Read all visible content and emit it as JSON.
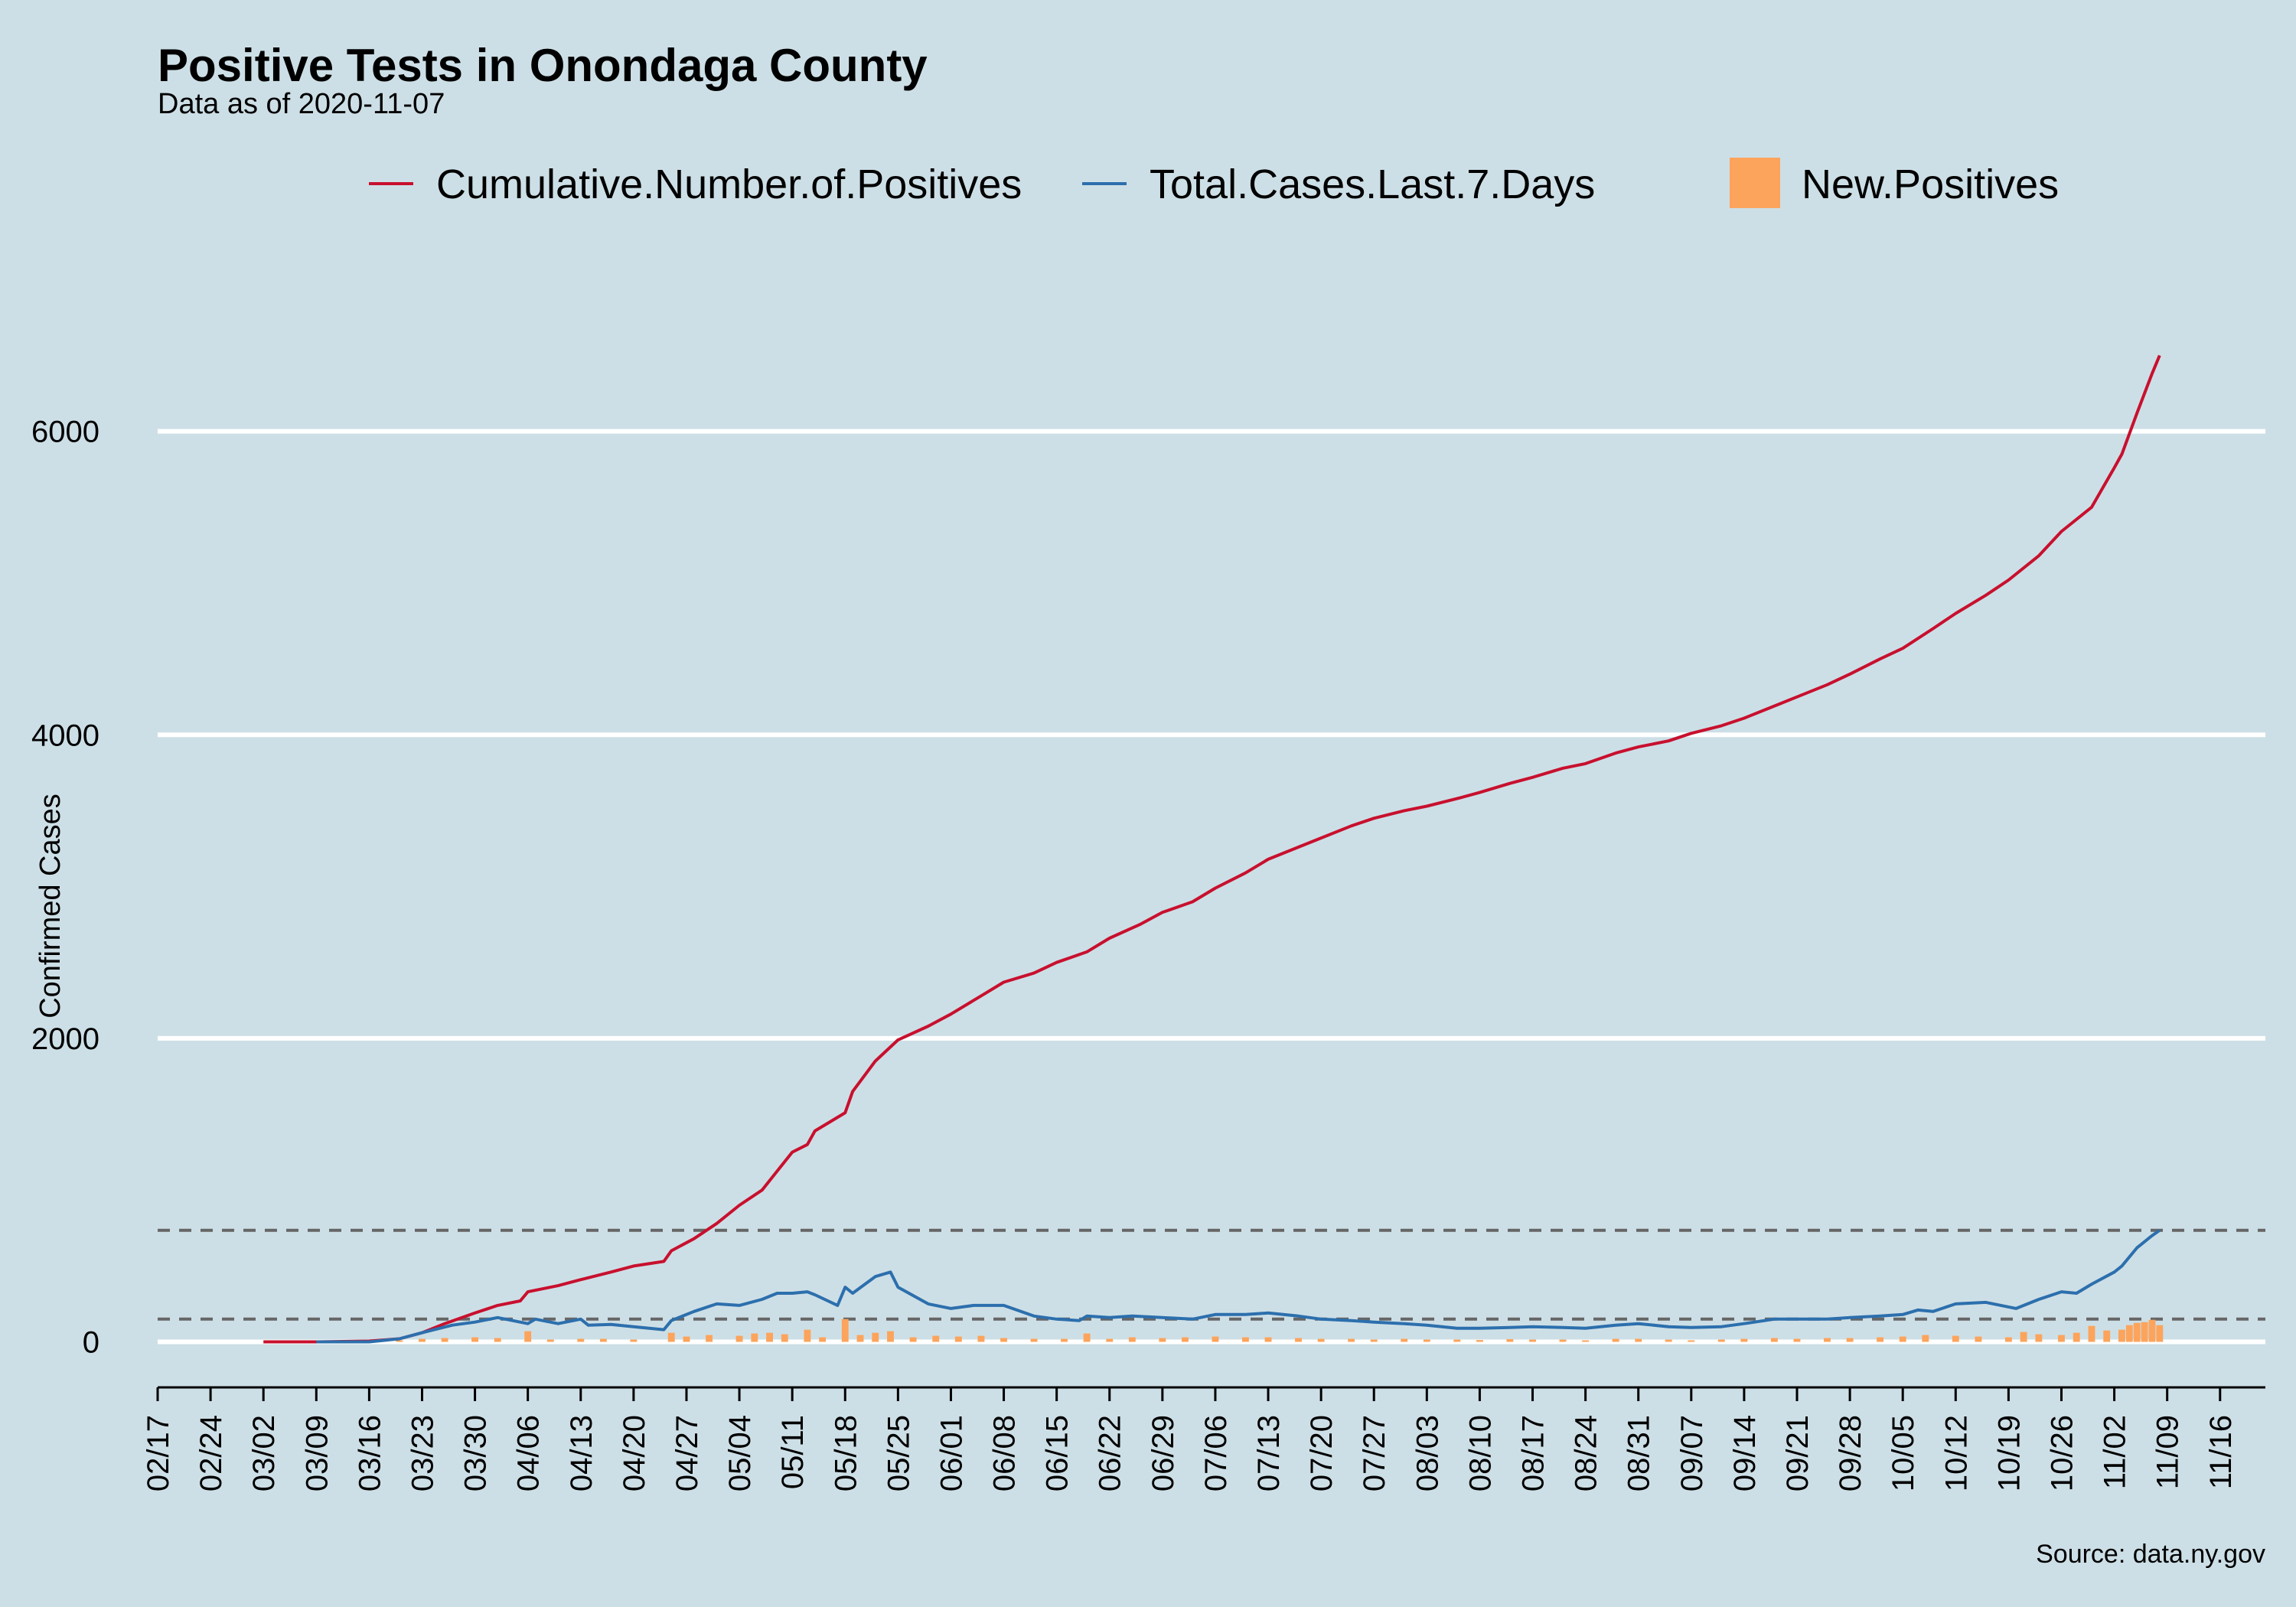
{
  "chart_data": {
    "type": "line",
    "title": "Positive Tests in Onondaga County",
    "subtitle": "Data as of 2020-11-07",
    "ylabel": "Confirmed Cases",
    "xlabel": "",
    "caption": "Source: data.ny.gov",
    "xlim": [
      "2020-02-17",
      "2020-11-22"
    ],
    "ylim": [
      -300,
      6800
    ],
    "y_ticks": [
      0,
      2000,
      4000,
      6000
    ],
    "x_tick_labels": [
      "02/17",
      "02/24",
      "03/02",
      "03/09",
      "03/16",
      "03/23",
      "03/30",
      "04/06",
      "04/13",
      "04/20",
      "04/27",
      "05/04",
      "05/11",
      "05/18",
      "05/25",
      "06/01",
      "06/08",
      "06/15",
      "06/22",
      "06/29",
      "07/06",
      "07/13",
      "07/20",
      "07/27",
      "08/03",
      "08/10",
      "08/17",
      "08/24",
      "08/31",
      "09/07",
      "09/14",
      "09/21",
      "09/28",
      "10/05",
      "10/12",
      "10/19",
      "10/26",
      "11/02",
      "11/09",
      "11/16"
    ],
    "x_tick_dates": [
      "2020-02-17",
      "2020-02-24",
      "2020-03-02",
      "2020-03-09",
      "2020-03-16",
      "2020-03-23",
      "2020-03-30",
      "2020-04-06",
      "2020-04-13",
      "2020-04-20",
      "2020-04-27",
      "2020-05-04",
      "2020-05-11",
      "2020-05-18",
      "2020-05-25",
      "2020-06-01",
      "2020-06-08",
      "2020-06-15",
      "2020-06-22",
      "2020-06-29",
      "2020-07-06",
      "2020-07-13",
      "2020-07-20",
      "2020-07-27",
      "2020-08-03",
      "2020-08-10",
      "2020-08-17",
      "2020-08-24",
      "2020-08-31",
      "2020-09-07",
      "2020-09-14",
      "2020-09-21",
      "2020-09-28",
      "2020-10-05",
      "2020-10-12",
      "2020-10-19",
      "2020-10-26",
      "2020-11-02",
      "2020-11-09",
      "2020-11-16"
    ],
    "reference_lines": [
      150,
      735
    ],
    "legend_position": "top",
    "series": [
      {
        "name": "Cumulative.Number.of.Positives",
        "kind": "line",
        "color": "#c8102e",
        "points": [
          [
            "2020-03-02",
            0
          ],
          [
            "2020-03-09",
            0
          ],
          [
            "2020-03-16",
            5
          ],
          [
            "2020-03-20",
            20
          ],
          [
            "2020-03-23",
            60
          ],
          [
            "2020-03-26",
            120
          ],
          [
            "2020-03-30",
            190
          ],
          [
            "2020-04-02",
            240
          ],
          [
            "2020-04-05",
            270
          ],
          [
            "2020-04-06",
            330
          ],
          [
            "2020-04-10",
            370
          ],
          [
            "2020-04-13",
            410
          ],
          [
            "2020-04-17",
            460
          ],
          [
            "2020-04-20",
            500
          ],
          [
            "2020-04-24",
            530
          ],
          [
            "2020-04-25",
            600
          ],
          [
            "2020-04-28",
            680
          ],
          [
            "2020-05-01",
            780
          ],
          [
            "2020-05-04",
            900
          ],
          [
            "2020-05-07",
            1000
          ],
          [
            "2020-05-11",
            1250
          ],
          [
            "2020-05-13",
            1300
          ],
          [
            "2020-05-14",
            1390
          ],
          [
            "2020-05-18",
            1510
          ],
          [
            "2020-05-19",
            1650
          ],
          [
            "2020-05-22",
            1850
          ],
          [
            "2020-05-25",
            1990
          ],
          [
            "2020-05-29",
            2080
          ],
          [
            "2020-06-01",
            2160
          ],
          [
            "2020-06-05",
            2280
          ],
          [
            "2020-06-08",
            2370
          ],
          [
            "2020-06-12",
            2430
          ],
          [
            "2020-06-15",
            2500
          ],
          [
            "2020-06-19",
            2570
          ],
          [
            "2020-06-22",
            2660
          ],
          [
            "2020-06-26",
            2750
          ],
          [
            "2020-06-29",
            2830
          ],
          [
            "2020-07-03",
            2900
          ],
          [
            "2020-07-06",
            2990
          ],
          [
            "2020-07-10",
            3090
          ],
          [
            "2020-07-13",
            3180
          ],
          [
            "2020-07-17",
            3260
          ],
          [
            "2020-07-20",
            3320
          ],
          [
            "2020-07-24",
            3400
          ],
          [
            "2020-07-27",
            3450
          ],
          [
            "2020-07-31",
            3500
          ],
          [
            "2020-08-03",
            3530
          ],
          [
            "2020-08-07",
            3580
          ],
          [
            "2020-08-10",
            3620
          ],
          [
            "2020-08-14",
            3680
          ],
          [
            "2020-08-17",
            3720
          ],
          [
            "2020-08-21",
            3780
          ],
          [
            "2020-08-24",
            3810
          ],
          [
            "2020-08-28",
            3880
          ],
          [
            "2020-08-31",
            3920
          ],
          [
            "2020-09-04",
            3960
          ],
          [
            "2020-09-07",
            4010
          ],
          [
            "2020-09-11",
            4060
          ],
          [
            "2020-09-14",
            4110
          ],
          [
            "2020-09-18",
            4190
          ],
          [
            "2020-09-21",
            4250
          ],
          [
            "2020-09-25",
            4330
          ],
          [
            "2020-09-28",
            4400
          ],
          [
            "2020-10-02",
            4500
          ],
          [
            "2020-10-05",
            4570
          ],
          [
            "2020-10-09",
            4700
          ],
          [
            "2020-10-12",
            4800
          ],
          [
            "2020-10-16",
            4920
          ],
          [
            "2020-10-19",
            5020
          ],
          [
            "2020-10-23",
            5180
          ],
          [
            "2020-10-26",
            5340
          ],
          [
            "2020-10-30",
            5500
          ],
          [
            "2020-11-02",
            5760
          ],
          [
            "2020-11-03",
            5850
          ],
          [
            "2020-11-05",
            6120
          ],
          [
            "2020-11-07",
            6380
          ],
          [
            "2020-11-08",
            6500
          ]
        ]
      },
      {
        "name": "Total.Cases.Last.7.Days",
        "kind": "line",
        "color": "#2c6fad",
        "points": [
          [
            "2020-03-09",
            0
          ],
          [
            "2020-03-16",
            0
          ],
          [
            "2020-03-20",
            20
          ],
          [
            "2020-03-23",
            60
          ],
          [
            "2020-03-27",
            110
          ],
          [
            "2020-03-30",
            130
          ],
          [
            "2020-04-02",
            160
          ],
          [
            "2020-04-06",
            120
          ],
          [
            "2020-04-07",
            150
          ],
          [
            "2020-04-10",
            120
          ],
          [
            "2020-04-13",
            150
          ],
          [
            "2020-04-14",
            110
          ],
          [
            "2020-04-17",
            115
          ],
          [
            "2020-04-20",
            100
          ],
          [
            "2020-04-24",
            80
          ],
          [
            "2020-04-25",
            140
          ],
          [
            "2020-04-28",
            200
          ],
          [
            "2020-05-01",
            250
          ],
          [
            "2020-05-04",
            240
          ],
          [
            "2020-05-07",
            280
          ],
          [
            "2020-05-09",
            320
          ],
          [
            "2020-05-11",
            320
          ],
          [
            "2020-05-13",
            330
          ],
          [
            "2020-05-14",
            310
          ],
          [
            "2020-05-17",
            240
          ],
          [
            "2020-05-18",
            360
          ],
          [
            "2020-05-19",
            320
          ],
          [
            "2020-05-22",
            430
          ],
          [
            "2020-05-24",
            460
          ],
          [
            "2020-05-25",
            360
          ],
          [
            "2020-05-29",
            250
          ],
          [
            "2020-06-01",
            220
          ],
          [
            "2020-06-04",
            240
          ],
          [
            "2020-06-08",
            240
          ],
          [
            "2020-06-12",
            170
          ],
          [
            "2020-06-15",
            150
          ],
          [
            "2020-06-18",
            140
          ],
          [
            "2020-06-19",
            170
          ],
          [
            "2020-06-22",
            160
          ],
          [
            "2020-06-25",
            170
          ],
          [
            "2020-06-29",
            160
          ],
          [
            "2020-07-03",
            150
          ],
          [
            "2020-07-06",
            180
          ],
          [
            "2020-07-10",
            180
          ],
          [
            "2020-07-13",
            190
          ],
          [
            "2020-07-17",
            170
          ],
          [
            "2020-07-20",
            150
          ],
          [
            "2020-07-24",
            140
          ],
          [
            "2020-07-27",
            130
          ],
          [
            "2020-07-31",
            120
          ],
          [
            "2020-08-03",
            110
          ],
          [
            "2020-08-07",
            90
          ],
          [
            "2020-08-10",
            90
          ],
          [
            "2020-08-14",
            95
          ],
          [
            "2020-08-17",
            100
          ],
          [
            "2020-08-21",
            95
          ],
          [
            "2020-08-24",
            90
          ],
          [
            "2020-08-28",
            110
          ],
          [
            "2020-08-31",
            120
          ],
          [
            "2020-09-04",
            100
          ],
          [
            "2020-09-07",
            95
          ],
          [
            "2020-09-11",
            100
          ],
          [
            "2020-09-14",
            120
          ],
          [
            "2020-09-18",
            150
          ],
          [
            "2020-09-21",
            150
          ],
          [
            "2020-09-25",
            150
          ],
          [
            "2020-09-28",
            160
          ],
          [
            "2020-10-02",
            170
          ],
          [
            "2020-10-05",
            180
          ],
          [
            "2020-10-07",
            210
          ],
          [
            "2020-10-09",
            200
          ],
          [
            "2020-10-12",
            250
          ],
          [
            "2020-10-16",
            260
          ],
          [
            "2020-10-19",
            230
          ],
          [
            "2020-10-20",
            220
          ],
          [
            "2020-10-23",
            280
          ],
          [
            "2020-10-26",
            330
          ],
          [
            "2020-10-28",
            320
          ],
          [
            "2020-10-30",
            380
          ],
          [
            "2020-11-02",
            460
          ],
          [
            "2020-11-03",
            500
          ],
          [
            "2020-11-05",
            620
          ],
          [
            "2020-11-07",
            700
          ],
          [
            "2020-11-08",
            735
          ]
        ]
      },
      {
        "name": "New.Positives",
        "kind": "bar",
        "color": "#fca45c",
        "points": [
          [
            "2020-03-20",
            10
          ],
          [
            "2020-03-23",
            20
          ],
          [
            "2020-03-26",
            25
          ],
          [
            "2020-03-30",
            30
          ],
          [
            "2020-04-02",
            25
          ],
          [
            "2020-04-06",
            70
          ],
          [
            "2020-04-09",
            15
          ],
          [
            "2020-04-13",
            20
          ],
          [
            "2020-04-16",
            20
          ],
          [
            "2020-04-20",
            15
          ],
          [
            "2020-04-25",
            60
          ],
          [
            "2020-04-27",
            35
          ],
          [
            "2020-04-30",
            45
          ],
          [
            "2020-05-04",
            40
          ],
          [
            "2020-05-06",
            55
          ],
          [
            "2020-05-08",
            60
          ],
          [
            "2020-05-10",
            50
          ],
          [
            "2020-05-13",
            80
          ],
          [
            "2020-05-15",
            30
          ],
          [
            "2020-05-18",
            150
          ],
          [
            "2020-05-20",
            45
          ],
          [
            "2020-05-22",
            60
          ],
          [
            "2020-05-24",
            70
          ],
          [
            "2020-05-27",
            30
          ],
          [
            "2020-05-30",
            40
          ],
          [
            "2020-06-02",
            35
          ],
          [
            "2020-06-05",
            40
          ],
          [
            "2020-06-08",
            25
          ],
          [
            "2020-06-12",
            20
          ],
          [
            "2020-06-16",
            20
          ],
          [
            "2020-06-19",
            55
          ],
          [
            "2020-06-22",
            20
          ],
          [
            "2020-06-25",
            30
          ],
          [
            "2020-06-29",
            25
          ],
          [
            "2020-07-02",
            30
          ],
          [
            "2020-07-06",
            35
          ],
          [
            "2020-07-10",
            30
          ],
          [
            "2020-07-13",
            30
          ],
          [
            "2020-07-17",
            25
          ],
          [
            "2020-07-20",
            20
          ],
          [
            "2020-07-24",
            20
          ],
          [
            "2020-07-27",
            15
          ],
          [
            "2020-07-31",
            20
          ],
          [
            "2020-08-03",
            15
          ],
          [
            "2020-08-07",
            15
          ],
          [
            "2020-08-10",
            12
          ],
          [
            "2020-08-14",
            18
          ],
          [
            "2020-08-17",
            15
          ],
          [
            "2020-08-21",
            15
          ],
          [
            "2020-08-24",
            10
          ],
          [
            "2020-08-28",
            20
          ],
          [
            "2020-08-31",
            20
          ],
          [
            "2020-09-04",
            15
          ],
          [
            "2020-09-07",
            10
          ],
          [
            "2020-09-11",
            15
          ],
          [
            "2020-09-14",
            20
          ],
          [
            "2020-09-18",
            25
          ],
          [
            "2020-09-21",
            20
          ],
          [
            "2020-09-25",
            25
          ],
          [
            "2020-09-28",
            25
          ],
          [
            "2020-10-02",
            30
          ],
          [
            "2020-10-05",
            35
          ],
          [
            "2020-10-08",
            45
          ],
          [
            "2020-10-12",
            40
          ],
          [
            "2020-10-15",
            35
          ],
          [
            "2020-10-19",
            30
          ],
          [
            "2020-10-21",
            65
          ],
          [
            "2020-10-23",
            50
          ],
          [
            "2020-10-26",
            45
          ],
          [
            "2020-10-28",
            60
          ],
          [
            "2020-10-30",
            105
          ],
          [
            "2020-11-01",
            75
          ],
          [
            "2020-11-03",
            80
          ],
          [
            "2020-11-04",
            110
          ],
          [
            "2020-11-05",
            125
          ],
          [
            "2020-11-06",
            130
          ],
          [
            "2020-11-07",
            145
          ],
          [
            "2020-11-08",
            110
          ]
        ]
      }
    ]
  }
}
